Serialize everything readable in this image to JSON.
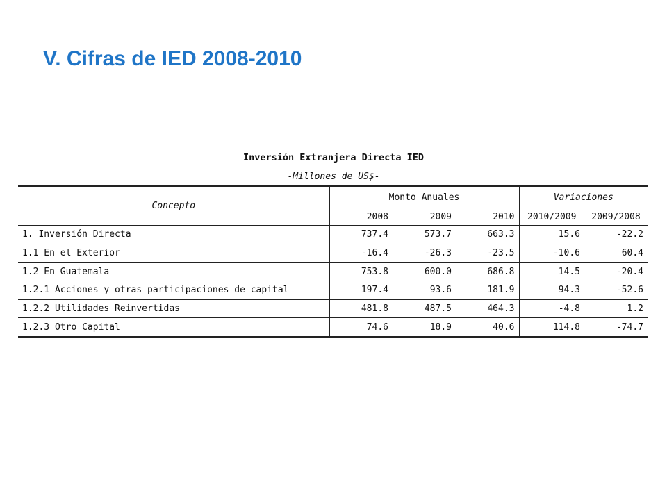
{
  "slide": {
    "title": "V. Cifras de IED 2008-2010"
  },
  "table": {
    "title": "Inversión Extranjera Directa IED",
    "subtitle": "-Millones de US$-",
    "headers": {
      "concept": "Concepto",
      "group_monto": "Monto Anuales",
      "group_variaciones": "Variaciones",
      "years": [
        "2008",
        "2009",
        "2010"
      ],
      "variations": [
        "2010/2009",
        "2009/2008"
      ]
    },
    "rows": [
      {
        "label": "1. Inversión  Directa",
        "level": 0,
        "values": [
          "737.4",
          "573.7",
          "663.3"
        ],
        "variations": [
          "15.6",
          "-22.2"
        ]
      },
      {
        "label": "1.1 En el Exterior",
        "level": 1,
        "values": [
          "-16.4",
          "-26.3",
          "-23.5"
        ],
        "variations": [
          "-10.6",
          "60.4"
        ]
      },
      {
        "label": "1.2 En Guatemala",
        "level": 1,
        "values": [
          "753.8",
          "600.0",
          "686.8"
        ],
        "variations": [
          "14.5",
          "-20.4"
        ]
      },
      {
        "label": "1.2.1 Acciones y otras participaciones de capital",
        "level": 2,
        "values": [
          "197.4",
          "93.6",
          "181.9"
        ],
        "variations": [
          "94.3",
          "-52.6"
        ]
      },
      {
        "label": "1.2.2 Utilidades Reinvertidas",
        "level": 2,
        "values": [
          "481.8",
          "487.5",
          "464.3"
        ],
        "variations": [
          "-4.8",
          "1.2"
        ]
      },
      {
        "label": "1.2.3 Otro Capital",
        "level": 2,
        "values": [
          "74.6",
          "18.9",
          "40.6"
        ],
        "variations": [
          "114.8",
          "-74.7"
        ]
      }
    ]
  }
}
